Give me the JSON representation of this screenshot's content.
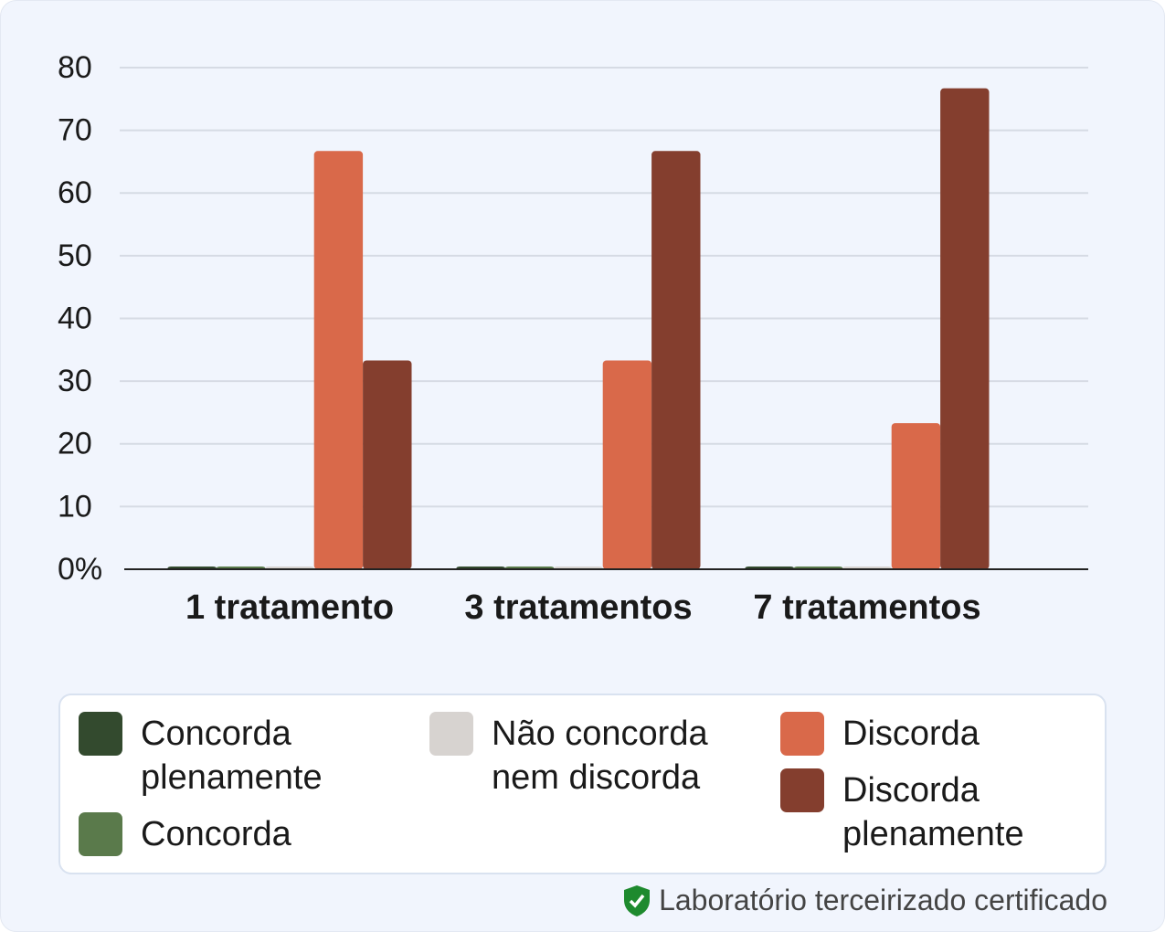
{
  "chart_data": {
    "type": "bar",
    "categories": [
      "1 tratamento",
      "3 tratamentos",
      "7 tratamentos"
    ],
    "series": [
      {
        "name": "Concorda plenamente",
        "color": "#334a2e",
        "values": [
          0,
          0,
          0
        ]
      },
      {
        "name": "Concorda",
        "color": "#5a7a4b",
        "values": [
          0,
          0,
          0
        ]
      },
      {
        "name": "Não concorda nem discorda",
        "color": "#d7d3d0",
        "values": [
          0,
          0,
          0
        ]
      },
      {
        "name": "Discorda",
        "color": "#d9694a",
        "values": [
          66.7,
          33.3,
          23.3
        ]
      },
      {
        "name": "Discorda plenamente",
        "color": "#843e2e",
        "values": [
          33.3,
          66.7,
          76.7
        ]
      }
    ],
    "ylim": [
      0,
      80
    ],
    "yticks": [
      {
        "value": 0,
        "label": "0%"
      },
      10,
      20,
      30,
      40,
      50,
      60,
      70,
      80
    ],
    "grid": true,
    "footnote": "Laboratório terceirizado certificado"
  }
}
